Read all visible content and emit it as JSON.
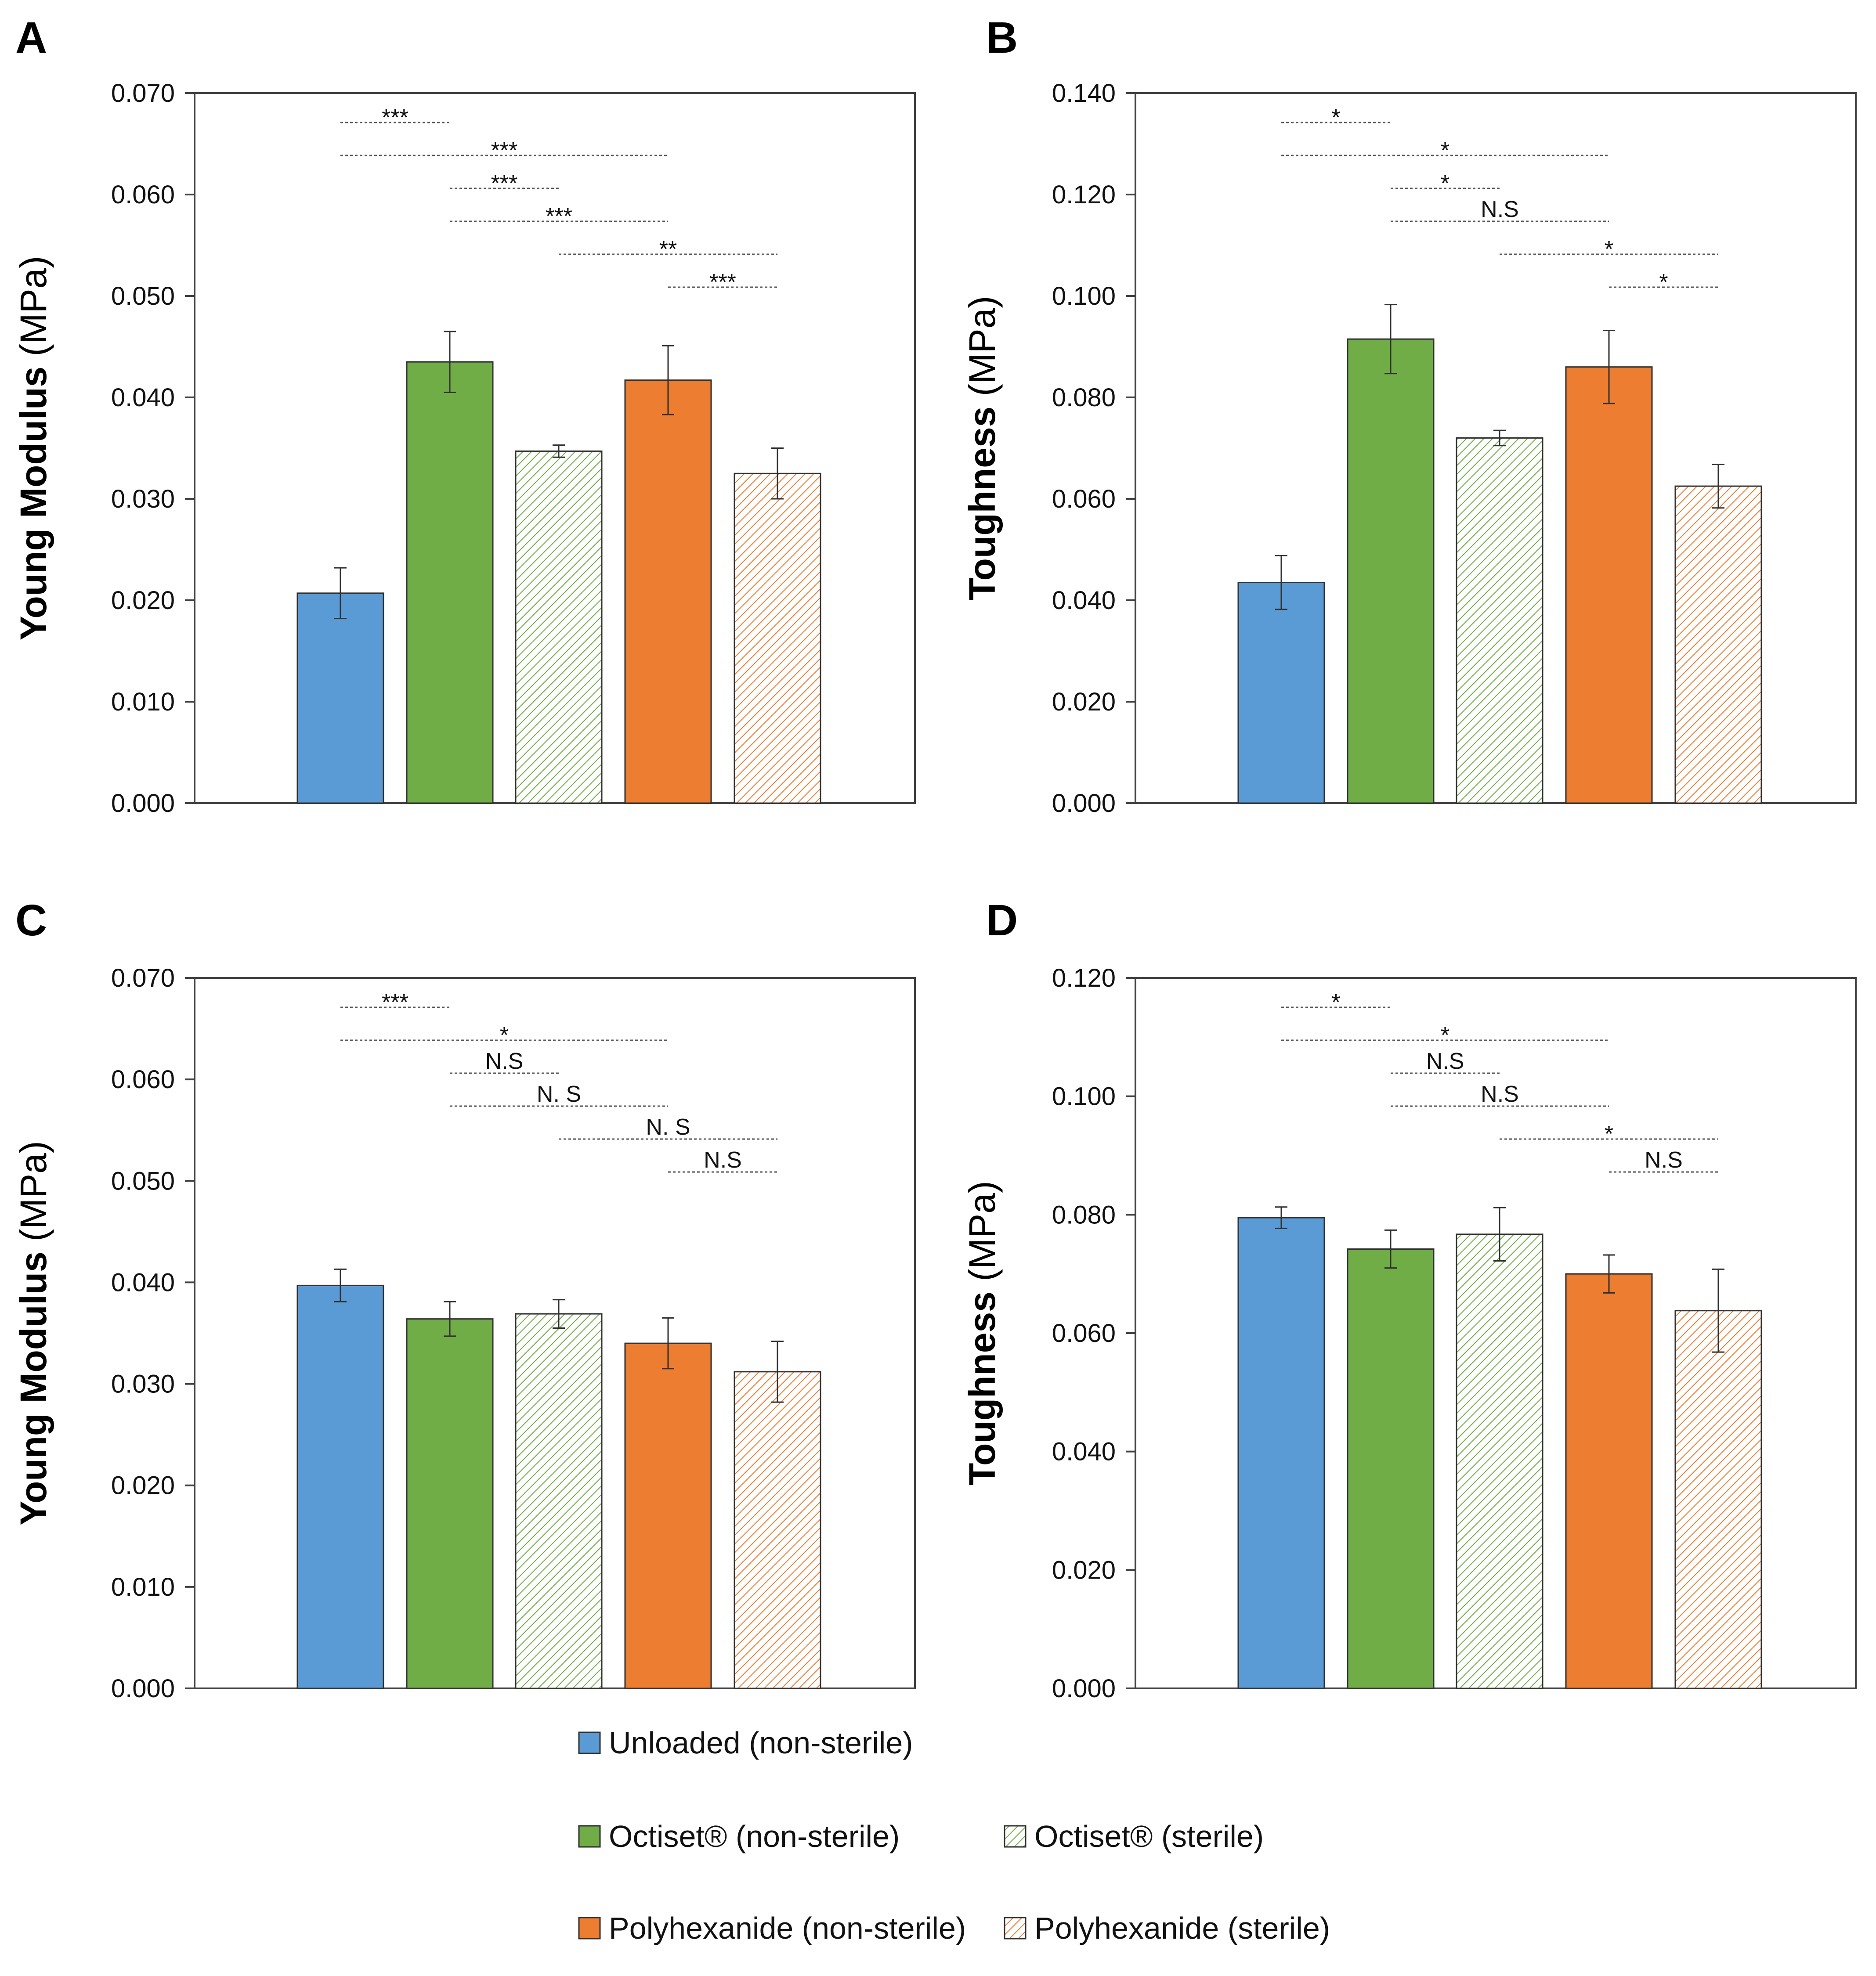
{
  "chart_data": [
    {
      "panel": "A",
      "type": "bar",
      "ylabel": "Young Modulus (MPa)",
      "ylabel_bold": "Young Modulus",
      "ylabel_unit": " (MPa)",
      "ylim": [
        0,
        0.07
      ],
      "yticks": [
        "0.000",
        "0.010",
        "0.020",
        "0.030",
        "0.040",
        "0.050",
        "0.060",
        "0.070"
      ],
      "categories": [
        "Unloaded (non-sterile)",
        "Octiset® (non-sterile)",
        "Octiset® (sterile)",
        "Polyhexanide (non-sterile)",
        "Polyhexanide (sterile)"
      ],
      "values": [
        0.0207,
        0.0435,
        0.0347,
        0.0417,
        0.0325
      ],
      "errors": [
        0.0025,
        0.003,
        0.0006,
        0.0034,
        0.0025
      ],
      "significance": [
        {
          "from": 0,
          "to": 1,
          "label": "***"
        },
        {
          "from": 0,
          "to": 3,
          "label": "***"
        },
        {
          "from": 1,
          "to": 2,
          "label": "***"
        },
        {
          "from": 1,
          "to": 3,
          "label": "***"
        },
        {
          "from": 2,
          "to": 4,
          "label": "**"
        },
        {
          "from": 3,
          "to": 4,
          "label": "***"
        }
      ]
    },
    {
      "panel": "B",
      "type": "bar",
      "ylabel": "Toughness (MPa)",
      "ylabel_bold": "Toughness",
      "ylabel_unit": " (MPa)",
      "ylim": [
        0,
        0.14
      ],
      "yticks": [
        "0.000",
        "0.020",
        "0.040",
        "0.060",
        "0.080",
        "0.100",
        "0.120",
        "0.140"
      ],
      "categories": [
        "Unloaded (non-sterile)",
        "Octiset® (non-sterile)",
        "Octiset® (sterile)",
        "Polyhexanide (non-sterile)",
        "Polyhexanide (sterile)"
      ],
      "values": [
        0.0435,
        0.0915,
        0.072,
        0.086,
        0.0625
      ],
      "errors": [
        0.0053,
        0.0068,
        0.0015,
        0.0072,
        0.0043
      ],
      "significance": [
        {
          "from": 0,
          "to": 1,
          "label": "*"
        },
        {
          "from": 0,
          "to": 3,
          "label": "*"
        },
        {
          "from": 1,
          "to": 2,
          "label": "*"
        },
        {
          "from": 1,
          "to": 3,
          "label": "N.S"
        },
        {
          "from": 2,
          "to": 4,
          "label": "*"
        },
        {
          "from": 3,
          "to": 4,
          "label": "*"
        }
      ]
    },
    {
      "panel": "C",
      "type": "bar",
      "ylabel": "Young Modulus (MPa)",
      "ylabel_bold": "Young Modulus",
      "ylabel_unit": " (MPa)",
      "ylim": [
        0,
        0.07
      ],
      "yticks": [
        "0.000",
        "0.010",
        "0.020",
        "0.030",
        "0.040",
        "0.050",
        "0.060",
        "0.070"
      ],
      "categories": [
        "Unloaded (non-sterile)",
        "Octiset® (non-sterile)",
        "Octiset® (sterile)",
        "Polyhexanide (non-sterile)",
        "Polyhexanide (sterile)"
      ],
      "values": [
        0.0397,
        0.0364,
        0.0369,
        0.034,
        0.0312
      ],
      "errors": [
        0.0016,
        0.0017,
        0.0014,
        0.0025,
        0.003
      ],
      "significance": [
        {
          "from": 0,
          "to": 1,
          "label": "***"
        },
        {
          "from": 0,
          "to": 3,
          "label": "*"
        },
        {
          "from": 1,
          "to": 2,
          "label": "N.S"
        },
        {
          "from": 1,
          "to": 3,
          "label": "N. S"
        },
        {
          "from": 2,
          "to": 4,
          "label": "N. S"
        },
        {
          "from": 3,
          "to": 4,
          "label": "N.S"
        }
      ]
    },
    {
      "panel": "D",
      "type": "bar",
      "ylabel": "Toughness (MPa)",
      "ylabel_bold": "Toughness",
      "ylabel_unit": " (MPa)",
      "ylim": [
        0,
        0.12
      ],
      "yticks": [
        "0.000",
        "0.020",
        "0.040",
        "0.060",
        "0.080",
        "0.100",
        "0.120"
      ],
      "categories": [
        "Unloaded (non-sterile)",
        "Octiset® (non-sterile)",
        "Octiset® (sterile)",
        "Polyhexanide (non-sterile)",
        "Polyhexanide (sterile)"
      ],
      "values": [
        0.0795,
        0.0742,
        0.0767,
        0.07,
        0.0638
      ],
      "errors": [
        0.0018,
        0.0032,
        0.0045,
        0.0032,
        0.007
      ],
      "significance": [
        {
          "from": 0,
          "to": 1,
          "label": "*"
        },
        {
          "from": 0,
          "to": 3,
          "label": "*"
        },
        {
          "from": 1,
          "to": 2,
          "label": "N.S"
        },
        {
          "from": 1,
          "to": 3,
          "label": "N.S"
        },
        {
          "from": 2,
          "to": 4,
          "label": "*"
        },
        {
          "from": 3,
          "to": 4,
          "label": "N.S"
        }
      ]
    }
  ],
  "series_styles": [
    {
      "name": "Unloaded (non-sterile)",
      "color": "#5b9bd5",
      "hatched": false
    },
    {
      "name": "Octiset® (non-sterile)",
      "color": "#70ad47",
      "hatched": false
    },
    {
      "name": "Octiset® (sterile)",
      "color": "#70ad47",
      "hatched": true
    },
    {
      "name": "Polyhexanide (non-sterile)",
      "color": "#ed7d31",
      "hatched": false
    },
    {
      "name": "Polyhexanide (sterile)",
      "color": "#ed7d31",
      "hatched": true
    }
  ],
  "legend": {
    "items": [
      {
        "label": "Unloaded (non-sterile)",
        "series": 0
      },
      {
        "label": "Octiset® (non-sterile)",
        "series": 1
      },
      {
        "label": "Octiset® (sterile)",
        "series": 2
      },
      {
        "label": "Polyhexanide (non-sterile)",
        "series": 3
      },
      {
        "label": "Polyhexanide (sterile)",
        "series": 4
      }
    ]
  }
}
